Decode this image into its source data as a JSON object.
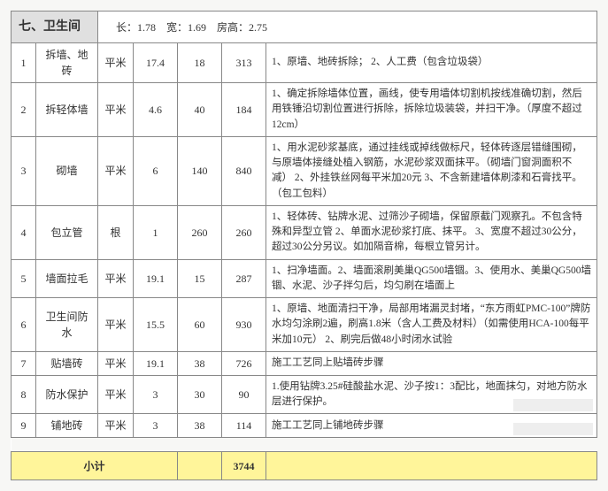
{
  "header": {
    "section_no": "七、",
    "section_title": "卫生间",
    "dims_label_l": "长：",
    "dims_l": "1.78",
    "dims_label_w": "宽：",
    "dims_w": "1.69",
    "dims_label_h": "房高：",
    "dims_h": "2.75"
  },
  "rows": [
    {
      "idx": "1",
      "name": "拆墙、地砖",
      "unit": "平米",
      "qty": "17.4",
      "price": "18",
      "sum": "313",
      "desc": "1、原墙、地砖拆除；\n2、人工费（包含垃圾袋）"
    },
    {
      "idx": "2",
      "name": "拆轻体墙",
      "unit": "平米",
      "qty": "4.6",
      "price": "40",
      "sum": "184",
      "desc": "1、确定拆除墙体位置，画线，使专用墙体切割机按线准确切割，然后用铁锤沿切割位置进行拆除，拆除垃圾装袋，并扫干净。（厚度不超过12cm）"
    },
    {
      "idx": "3",
      "name": "砌墙",
      "unit": "平米",
      "qty": "6",
      "price": "140",
      "sum": "840",
      "desc": "1、用水泥砂浆基底，通过挂线或掉线做标尺，轻体砖逐层错缝围砌，与原墙体接缝处植入钢筋，水泥砂浆双面抹平。（砌墙门窗洞面积不减）\n2、外挂铁丝网每平米加20元\n3、不含新建墙体刷漆和石膏找平。（包工包料）"
    },
    {
      "idx": "4",
      "name": "包立管",
      "unit": "根",
      "qty": "1",
      "price": "260",
      "sum": "260",
      "desc": "1、轻体砖、钻牌水泥、过筛沙子砌墙，保留原截门观察孔。不包含特殊和异型立管\n2、单面水泥砂浆打底、抹平。\n3、宽度不超过30公分，超过30公分另议。如加隔音棉，每根立管另计。"
    },
    {
      "idx": "5",
      "name": "墙面拉毛",
      "unit": "平米",
      "qty": "19.1",
      "price": "15",
      "sum": "287",
      "desc": "1、扫净墙面。2、墙面滚刷美巢QG500墙锢。3、使用水、美巢QG500墙锢、水泥、沙子拌匀后，均匀刷在墙面上"
    },
    {
      "idx": "6",
      "name": "卫生间防水",
      "unit": "平米",
      "qty": "15.5",
      "price": "60",
      "sum": "930",
      "desc": "1、原墙、地面清扫干净，局部用堵漏灵封堵，“东方雨虹PMC-100”牌防水均匀涂刷2遍，刷高1.8米（含人工费及材料）（如需使用HCA-100每平米加10元）\n2、刷完后做48小时闭水试验"
    },
    {
      "idx": "7",
      "name": "贴墙砖",
      "unit": "平米",
      "qty": "19.1",
      "price": "38",
      "sum": "726",
      "desc": "施工工艺同上贴墙砖步骤"
    },
    {
      "idx": "8",
      "name": "防水保护",
      "unit": "平米",
      "qty": "3",
      "price": "30",
      "sum": "90",
      "desc": "1.使用钻牌3.25#硅酸盐水泥、沙子按1：3配比，地面抹匀，对地方防水层进行保护。"
    },
    {
      "idx": "9",
      "name": "铺地砖",
      "unit": "平米",
      "qty": "3",
      "price": "38",
      "sum": "114",
      "desc": "施工工艺同上铺地砖步骤"
    }
  ],
  "subtotal": {
    "label": "小计",
    "value": "3744"
  }
}
